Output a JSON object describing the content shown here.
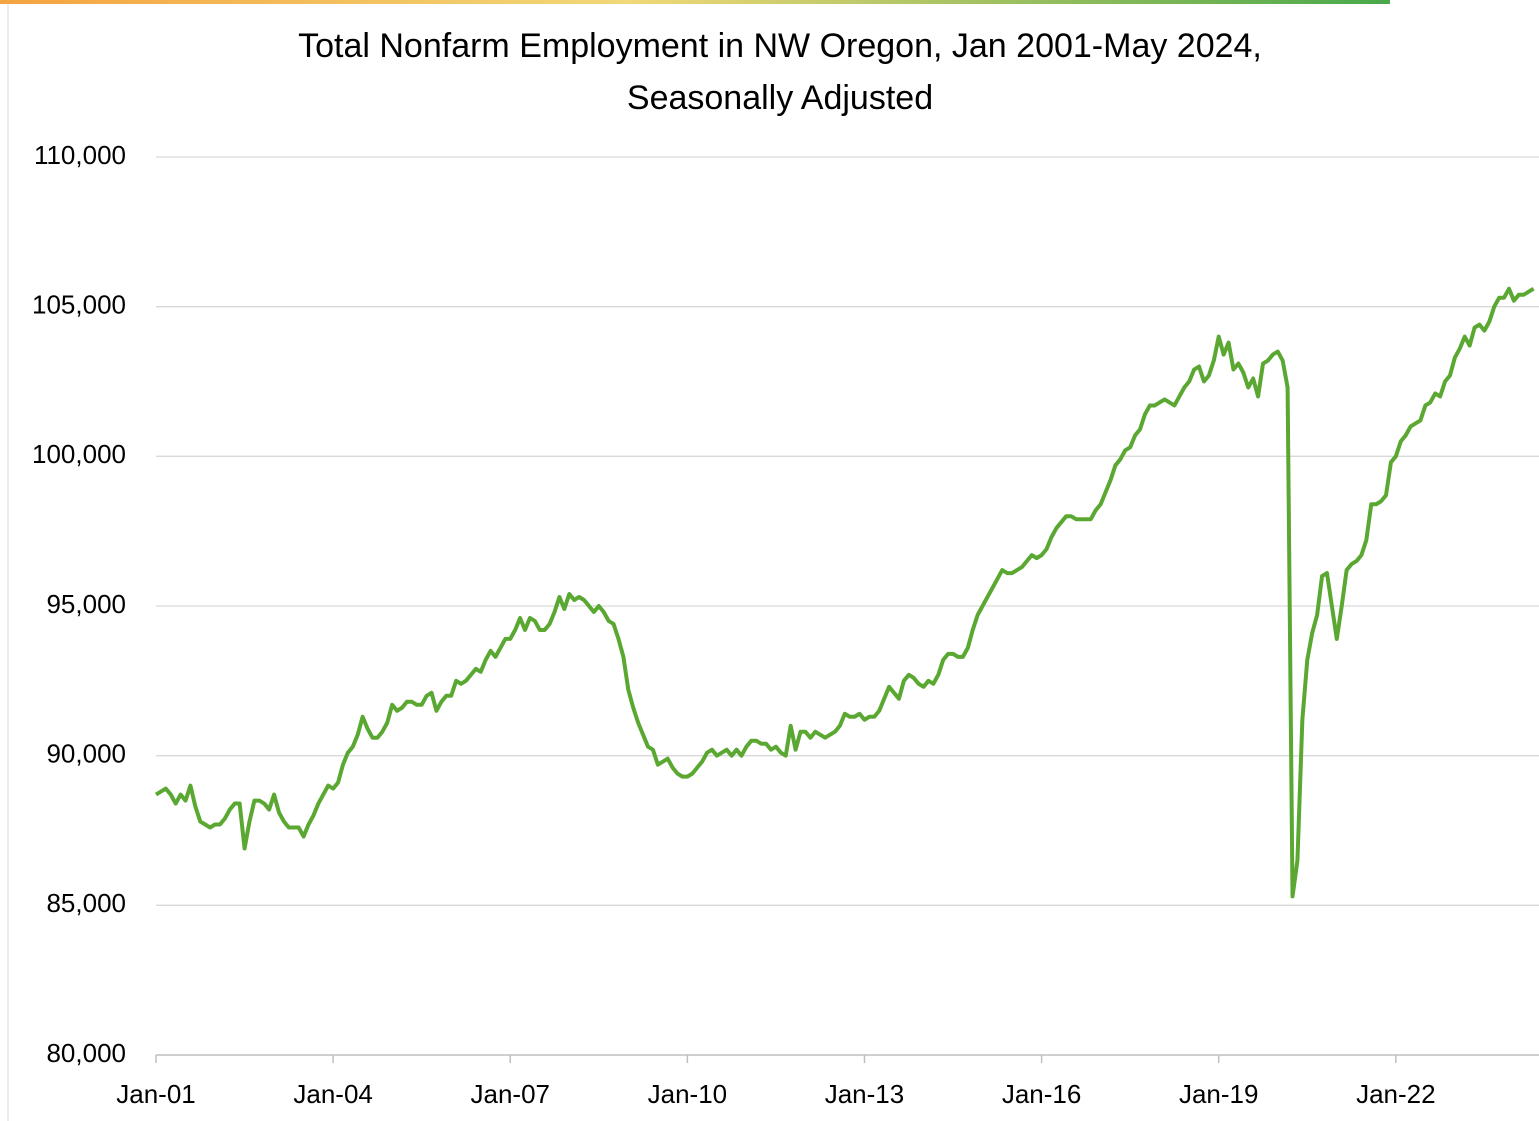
{
  "chart_data": {
    "type": "line",
    "title": [
      "Total Nonfarm Employment in NW Oregon, Jan 2001-May 2024,",
      "Seasonally Adjusted"
    ],
    "categories": [
      "Jan-01",
      null,
      null,
      null,
      null,
      null,
      null,
      null,
      null,
      null,
      null,
      null,
      null,
      null,
      null,
      null,
      null,
      null,
      null,
      null,
      null,
      null,
      null,
      null,
      null,
      null,
      null,
      null,
      null,
      null,
      null,
      null,
      null,
      null,
      null,
      null,
      "Jan-04",
      null,
      null,
      null,
      null,
      null,
      null,
      null,
      null,
      null,
      null,
      null,
      null,
      null,
      null,
      null,
      null,
      null,
      null,
      null,
      null,
      null,
      null,
      null,
      null,
      null,
      null,
      null,
      null,
      null,
      null,
      null,
      null,
      null,
      null,
      null,
      "Jan-07",
      null,
      null,
      null,
      null,
      null,
      null,
      null,
      null,
      null,
      null,
      null,
      null,
      null,
      null,
      null,
      null,
      null,
      null,
      null,
      null,
      null,
      null,
      null,
      null,
      null,
      null,
      null,
      null,
      null,
      null,
      null,
      null,
      null,
      null,
      null,
      "Jan-10",
      null,
      null,
      null,
      null,
      null,
      null,
      null,
      null,
      null,
      null,
      null,
      null,
      null,
      null,
      null,
      null,
      null,
      null,
      null,
      null,
      null,
      null,
      null,
      null,
      null,
      null,
      null,
      null,
      null,
      null,
      null,
      null,
      null,
      null,
      null,
      "Jan-13",
      null,
      null,
      null,
      null,
      null,
      null,
      null,
      null,
      null,
      null,
      null,
      null,
      null,
      null,
      null,
      null,
      null,
      null,
      null,
      null,
      null,
      null,
      null,
      null,
      null,
      null,
      null,
      null,
      null,
      null,
      null,
      null,
      null,
      null,
      null,
      "Jan-16",
      null,
      null,
      null,
      null,
      null,
      null,
      null,
      null,
      null,
      null,
      null,
      null,
      null,
      null,
      null,
      null,
      null,
      null,
      null,
      null,
      null,
      null,
      null,
      null,
      null,
      null,
      null,
      null,
      null,
      null,
      null,
      null,
      null,
      null,
      null,
      "Jan-19",
      null,
      null,
      null,
      null,
      null,
      null,
      null,
      null,
      null,
      null,
      null,
      null,
      null,
      null,
      null,
      null,
      null,
      null,
      null,
      null,
      null,
      null,
      null,
      null,
      null,
      null,
      null,
      null,
      null,
      null,
      null,
      null,
      null,
      null,
      null,
      "Jan-22",
      null,
      null,
      null,
      null,
      null,
      null,
      null,
      null,
      null,
      null,
      null,
      null,
      null,
      null,
      null,
      null,
      null,
      null,
      null,
      null,
      null,
      null,
      null,
      null,
      null,
      null,
      null,
      null
    ],
    "series": [
      {
        "name": "Total Nonfarm Employment",
        "color": "#5aa832",
        "values": [
          88700,
          88800,
          88900,
          88700,
          88400,
          88700,
          88500,
          89000,
          88300,
          87800,
          87700,
          87600,
          87700,
          87700,
          87900,
          88200,
          88400,
          88400,
          86900,
          87800,
          88500,
          88500,
          88400,
          88200,
          88700,
          88100,
          87800,
          87600,
          87600,
          87600,
          87300,
          87700,
          88000,
          88400,
          88700,
          89000,
          88900,
          89100,
          89700,
          90100,
          90300,
          90700,
          91300,
          90900,
          90600,
          90600,
          90800,
          91100,
          91700,
          91500,
          91600,
          91800,
          91800,
          91700,
          91700,
          92000,
          92100,
          91500,
          91800,
          92000,
          92000,
          92500,
          92400,
          92500,
          92700,
          92900,
          92800,
          93200,
          93500,
          93300,
          93600,
          93900,
          93900,
          94200,
          94600,
          94200,
          94600,
          94500,
          94200,
          94200,
          94400,
          94800,
          95300,
          94900,
          95400,
          95200,
          95300,
          95200,
          95000,
          94800,
          95000,
          94800,
          94500,
          94400,
          93900,
          93300,
          92200,
          91600,
          91100,
          90700,
          90300,
          90200,
          89700,
          89800,
          89900,
          89600,
          89400,
          89300,
          89300,
          89400,
          89600,
          89800,
          90100,
          90200,
          90000,
          90100,
          90200,
          90000,
          90200,
          90000,
          90300,
          90500,
          90500,
          90400,
          90400,
          90200,
          90300,
          90100,
          90000,
          91000,
          90200,
          90800,
          90800,
          90600,
          90800,
          90700,
          90600,
          90700,
          90800,
          91000,
          91400,
          91300,
          91300,
          91400,
          91200,
          91300,
          91300,
          91500,
          91900,
          92300,
          92100,
          91900,
          92500,
          92700,
          92600,
          92400,
          92300,
          92500,
          92400,
          92700,
          93200,
          93400,
          93400,
          93300,
          93300,
          93600,
          94200,
          94700,
          95000,
          95300,
          95600,
          95900,
          96200,
          96100,
          96100,
          96200,
          96300,
          96500,
          96700,
          96600,
          96700,
          96900,
          97300,
          97600,
          97800,
          98000,
          98000,
          97900,
          97900,
          97900,
          97900,
          98200,
          98400,
          98800,
          99200,
          99700,
          99900,
          100200,
          100300,
          100700,
          100900,
          101400,
          101700,
          101700,
          101800,
          101900,
          101800,
          101700,
          102000,
          102300,
          102500,
          102900,
          103000,
          102500,
          102700,
          103200,
          104000,
          103400,
          103800,
          102900,
          103100,
          102800,
          102300,
          102600,
          102000,
          103100,
          103200,
          103400,
          103500,
          103200,
          102300,
          85300,
          86500,
          91200,
          93200,
          94100,
          94700,
          96000,
          96100,
          95000,
          93900,
          95000,
          96200,
          96400,
          96500,
          96700,
          97200,
          98400,
          98400,
          98500,
          98700,
          99800,
          100000,
          100500,
          100700,
          101000,
          101100,
          101200,
          101700,
          101800,
          102100,
          102000,
          102500,
          102700,
          103300,
          103600,
          104000,
          103700,
          104300,
          104400,
          104200,
          104500,
          105000,
          105300,
          105300,
          105600,
          105200,
          105400,
          105400,
          105500,
          105600
        ]
      }
    ],
    "ylim": [
      80000,
      110000
    ],
    "yticks": [
      {
        "value": 80000,
        "label": "80,000"
      },
      {
        "value": 85000,
        "label": "85,000"
      },
      {
        "value": 90000,
        "label": "90,000"
      },
      {
        "value": 95000,
        "label": "95,000"
      },
      {
        "value": 100000,
        "label": "100,000"
      },
      {
        "value": 105000,
        "label": "105,000"
      },
      {
        "value": 110000,
        "label": "110,000"
      }
    ],
    "grid": true
  }
}
